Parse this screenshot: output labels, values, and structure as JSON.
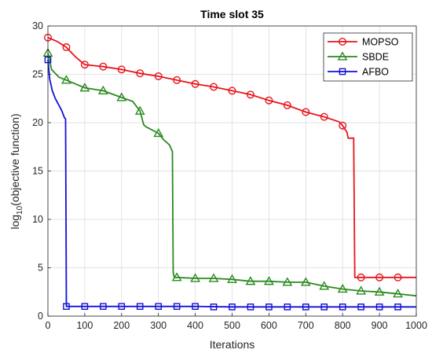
{
  "chart_data": {
    "type": "line",
    "title": "Time slot 35",
    "xlabel": "Iterations",
    "ylabel_prefix": "log",
    "ylabel_sub": "10",
    "ylabel_suffix": "(objective function)",
    "xlim": [
      0,
      1000
    ],
    "ylim": [
      0,
      30
    ],
    "x_ticks": [
      0,
      100,
      200,
      300,
      400,
      500,
      600,
      700,
      800,
      900,
      1000
    ],
    "y_ticks": [
      0,
      5,
      10,
      15,
      20,
      25,
      30
    ],
    "grid": true,
    "legend_position": "top-right",
    "series": [
      {
        "name": "MOPSO",
        "color": "#e8141c",
        "marker": "circle",
        "line": [
          [
            0,
            28.8
          ],
          [
            25,
            28.4
          ],
          [
            50,
            27.8
          ],
          [
            75,
            26.8
          ],
          [
            100,
            26.0
          ],
          [
            150,
            25.8
          ],
          [
            200,
            25.5
          ],
          [
            250,
            25.1
          ],
          [
            300,
            24.8
          ],
          [
            350,
            24.4
          ],
          [
            400,
            24.0
          ],
          [
            450,
            23.7
          ],
          [
            500,
            23.3
          ],
          [
            550,
            22.9
          ],
          [
            600,
            22.3
          ],
          [
            650,
            21.8
          ],
          [
            700,
            21.1
          ],
          [
            750,
            20.6
          ],
          [
            790,
            20.1
          ],
          [
            800,
            19.7
          ],
          [
            812,
            19.0
          ],
          [
            815,
            18.4
          ],
          [
            830,
            18.4
          ],
          [
            833,
            4.0
          ],
          [
            850,
            4.0
          ],
          [
            1000,
            4.0
          ]
        ],
        "markers": [
          [
            0,
            28.8
          ],
          [
            50,
            27.8
          ],
          [
            100,
            26.0
          ],
          [
            150,
            25.8
          ],
          [
            200,
            25.5
          ],
          [
            250,
            25.1
          ],
          [
            300,
            24.8
          ],
          [
            350,
            24.4
          ],
          [
            400,
            24.0
          ],
          [
            450,
            23.7
          ],
          [
            500,
            23.3
          ],
          [
            550,
            22.9
          ],
          [
            600,
            22.3
          ],
          [
            650,
            21.8
          ],
          [
            700,
            21.1
          ],
          [
            750,
            20.6
          ],
          [
            800,
            19.7
          ],
          [
            850,
            4.0
          ],
          [
            900,
            4.0
          ],
          [
            950,
            4.0
          ]
        ]
      },
      {
        "name": "SBDE",
        "color": "#2a8a1e",
        "marker": "triangle",
        "line": [
          [
            0,
            27.2
          ],
          [
            10,
            25.5
          ],
          [
            30,
            24.7
          ],
          [
            50,
            24.4
          ],
          [
            100,
            23.6
          ],
          [
            150,
            23.3
          ],
          [
            200,
            22.6
          ],
          [
            230,
            22.2
          ],
          [
            250,
            21.2
          ],
          [
            260,
            19.8
          ],
          [
            265,
            19.6
          ],
          [
            300,
            18.9
          ],
          [
            315,
            18.2
          ],
          [
            330,
            17.7
          ],
          [
            338,
            17.0
          ],
          [
            340,
            4.5
          ],
          [
            343,
            4.0
          ],
          [
            350,
            4.0
          ],
          [
            400,
            3.9
          ],
          [
            450,
            3.9
          ],
          [
            500,
            3.8
          ],
          [
            550,
            3.6
          ],
          [
            600,
            3.6
          ],
          [
            650,
            3.5
          ],
          [
            700,
            3.5
          ],
          [
            750,
            3.1
          ],
          [
            800,
            2.8
          ],
          [
            850,
            2.6
          ],
          [
            900,
            2.5
          ],
          [
            950,
            2.3
          ],
          [
            1000,
            2.1
          ]
        ],
        "markers": [
          [
            0,
            27.2
          ],
          [
            50,
            24.4
          ],
          [
            100,
            23.6
          ],
          [
            150,
            23.3
          ],
          [
            200,
            22.6
          ],
          [
            250,
            21.2
          ],
          [
            300,
            18.9
          ],
          [
            350,
            4.0
          ],
          [
            400,
            3.9
          ],
          [
            450,
            3.9
          ],
          [
            500,
            3.8
          ],
          [
            550,
            3.6
          ],
          [
            600,
            3.6
          ],
          [
            650,
            3.5
          ],
          [
            700,
            3.5
          ],
          [
            750,
            3.1
          ],
          [
            800,
            2.8
          ],
          [
            850,
            2.6
          ],
          [
            900,
            2.5
          ],
          [
            950,
            2.3
          ]
        ]
      },
      {
        "name": "AFBO",
        "color": "#1010d8",
        "marker": "square",
        "line": [
          [
            0,
            26.5
          ],
          [
            5,
            24.5
          ],
          [
            12,
            23.3
          ],
          [
            20,
            22.5
          ],
          [
            30,
            21.8
          ],
          [
            38,
            21.2
          ],
          [
            42,
            20.8
          ],
          [
            45,
            20.5
          ],
          [
            48,
            20.4
          ],
          [
            50,
            1.0
          ],
          [
            100,
            1.0
          ],
          [
            200,
            1.0
          ],
          [
            300,
            1.0
          ],
          [
            400,
            1.0
          ],
          [
            500,
            0.95
          ],
          [
            600,
            0.95
          ],
          [
            700,
            0.95
          ],
          [
            800,
            0.95
          ],
          [
            900,
            0.95
          ],
          [
            1000,
            0.95
          ]
        ],
        "markers": [
          [
            0,
            26.5
          ],
          [
            50,
            1.0
          ],
          [
            100,
            1.0
          ],
          [
            150,
            1.0
          ],
          [
            200,
            1.0
          ],
          [
            250,
            1.0
          ],
          [
            300,
            1.0
          ],
          [
            350,
            1.0
          ],
          [
            400,
            1.0
          ],
          [
            450,
            0.95
          ],
          [
            500,
            0.95
          ],
          [
            550,
            0.95
          ],
          [
            600,
            0.95
          ],
          [
            650,
            0.95
          ],
          [
            700,
            0.95
          ],
          [
            750,
            0.95
          ],
          [
            800,
            0.95
          ],
          [
            850,
            0.95
          ],
          [
            900,
            0.95
          ],
          [
            950,
            0.95
          ]
        ]
      }
    ]
  }
}
